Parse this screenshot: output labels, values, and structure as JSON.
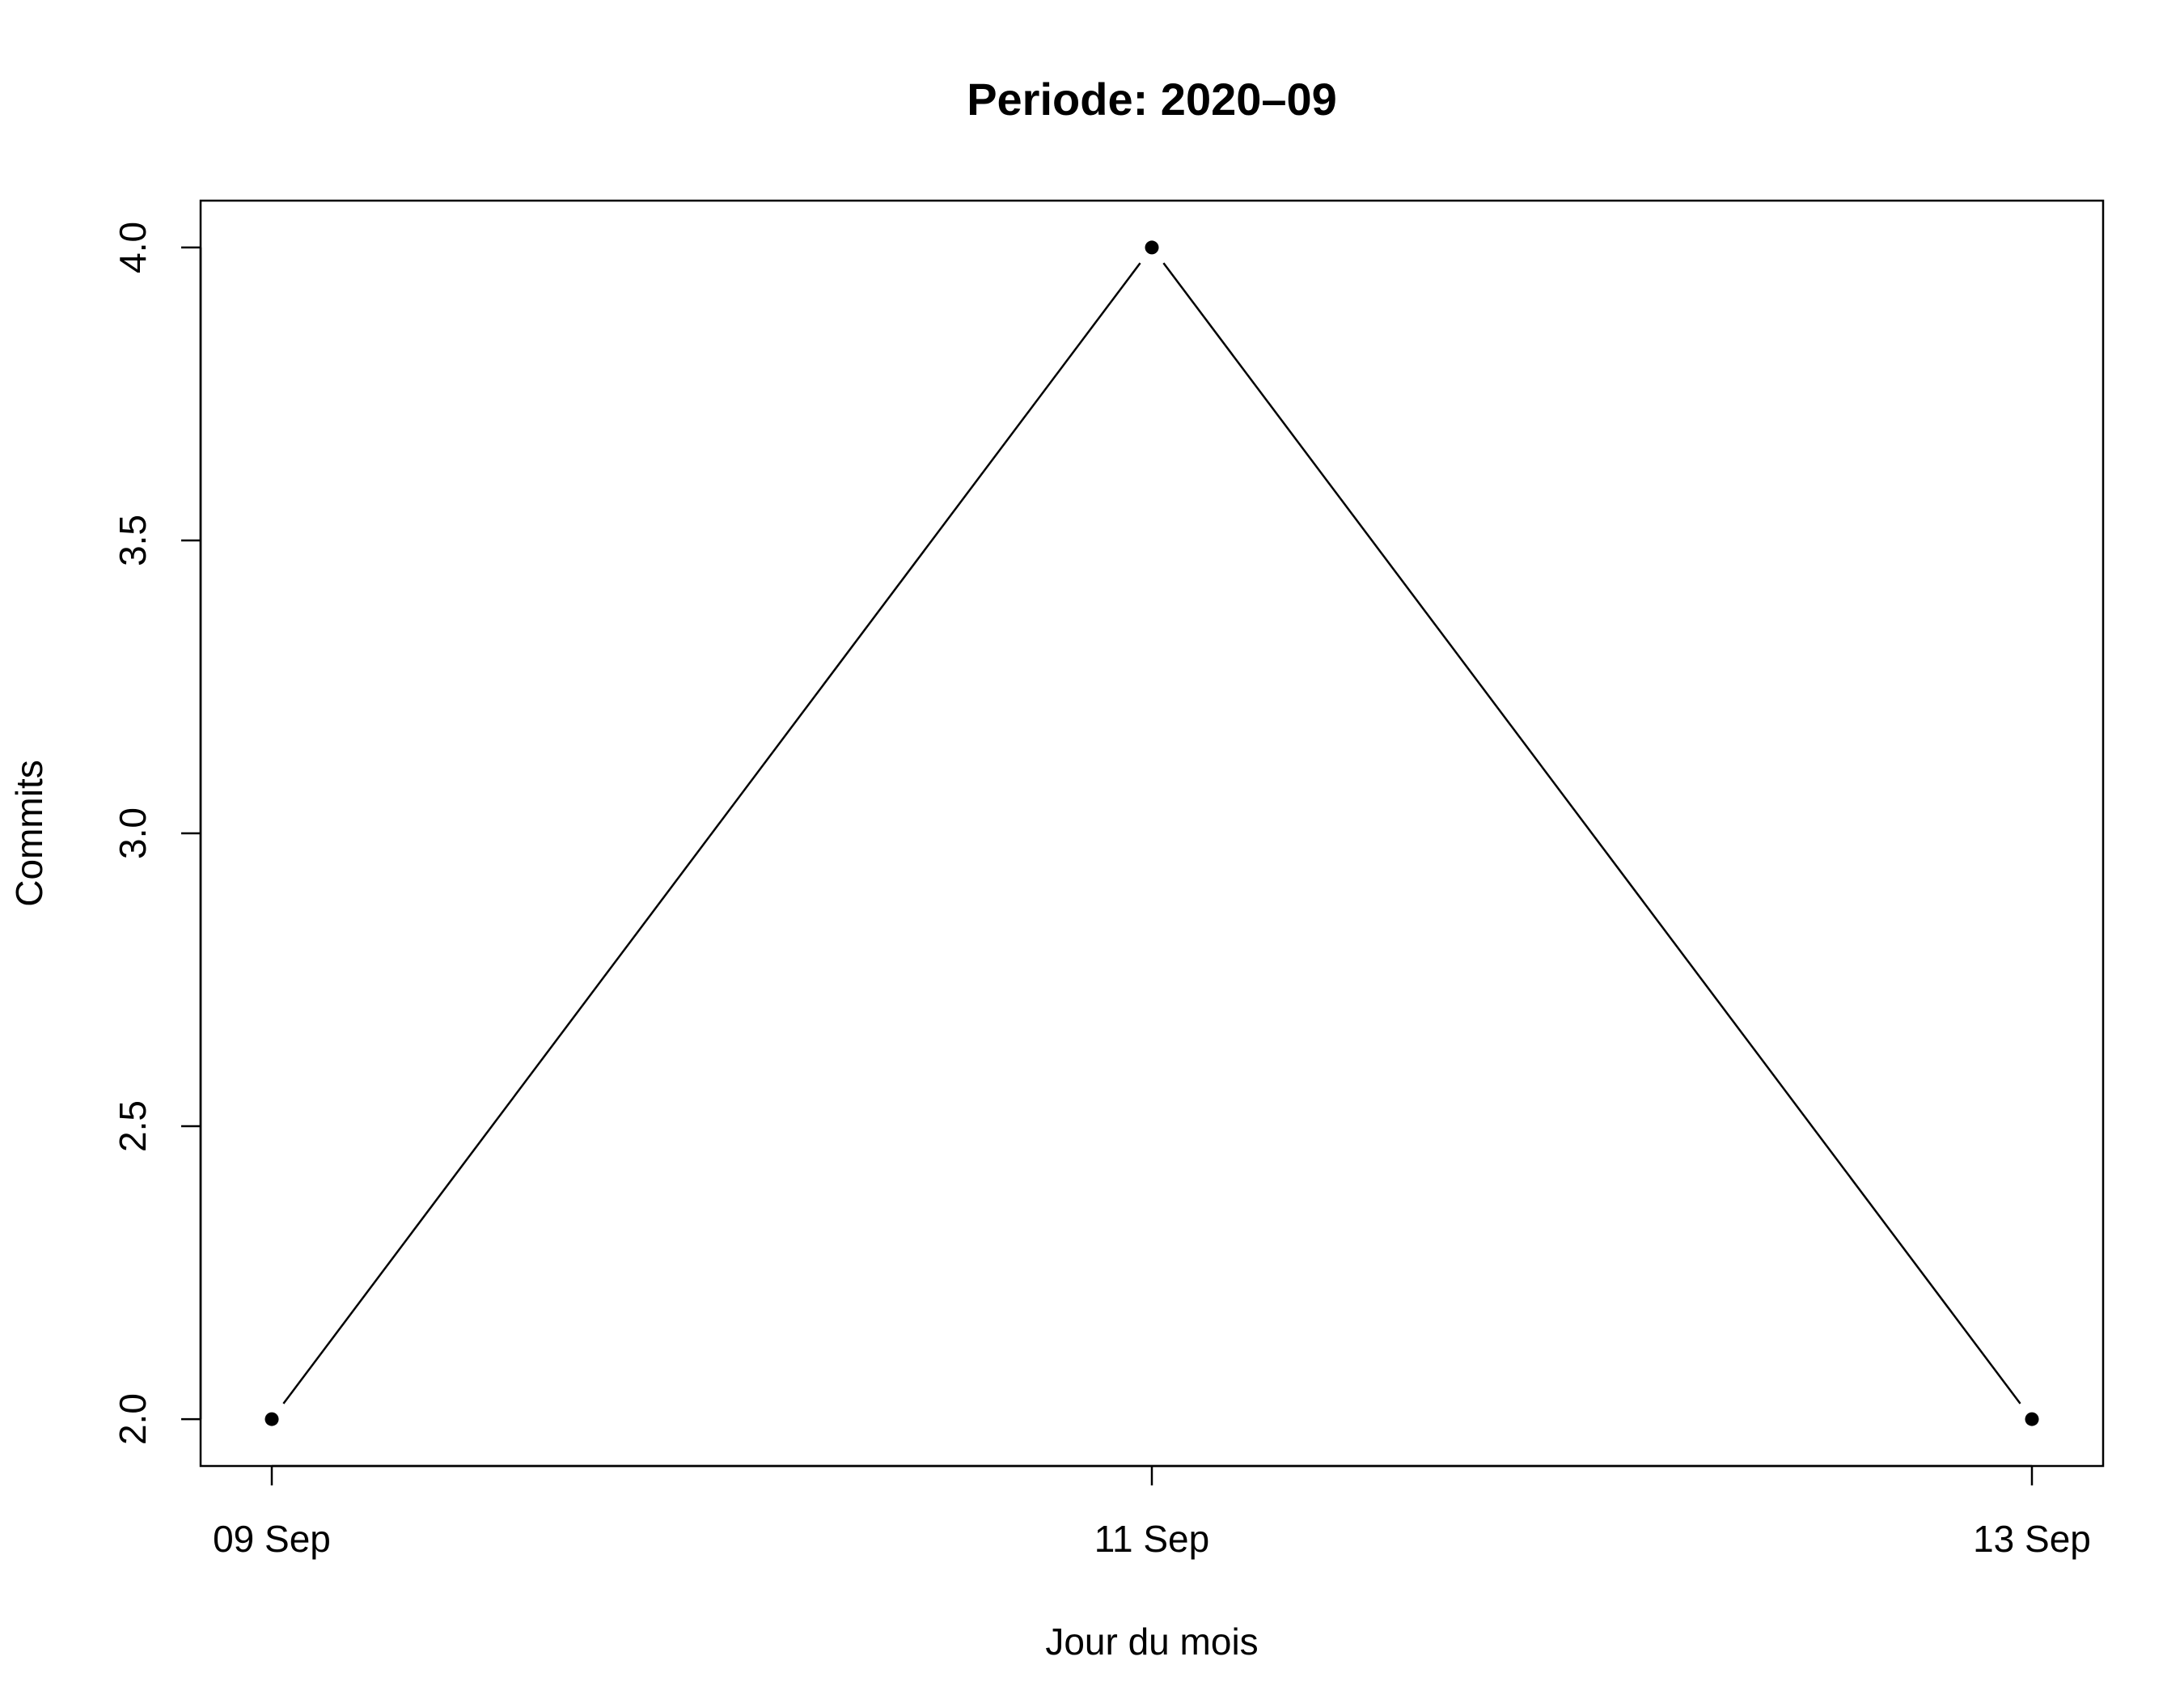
{
  "chart_data": {
    "type": "line",
    "title": "Periode: 2020–09",
    "xlabel": "Jour du mois",
    "ylabel": "Commits",
    "x": [
      "2020-09-09",
      "2020-09-11",
      "2020-09-13"
    ],
    "x_tick_labels": [
      "09 Sep",
      "11 Sep",
      "13 Sep"
    ],
    "y_ticks": [
      "2.0",
      "2.5",
      "3.0",
      "3.5",
      "4.0"
    ],
    "series": [
      {
        "values": [
          2,
          4,
          2
        ]
      }
    ],
    "ylim": [
      1.92,
      4.08
    ],
    "grid": false,
    "legend": "none",
    "line_color": "#000000",
    "marker": "filled-circle"
  }
}
